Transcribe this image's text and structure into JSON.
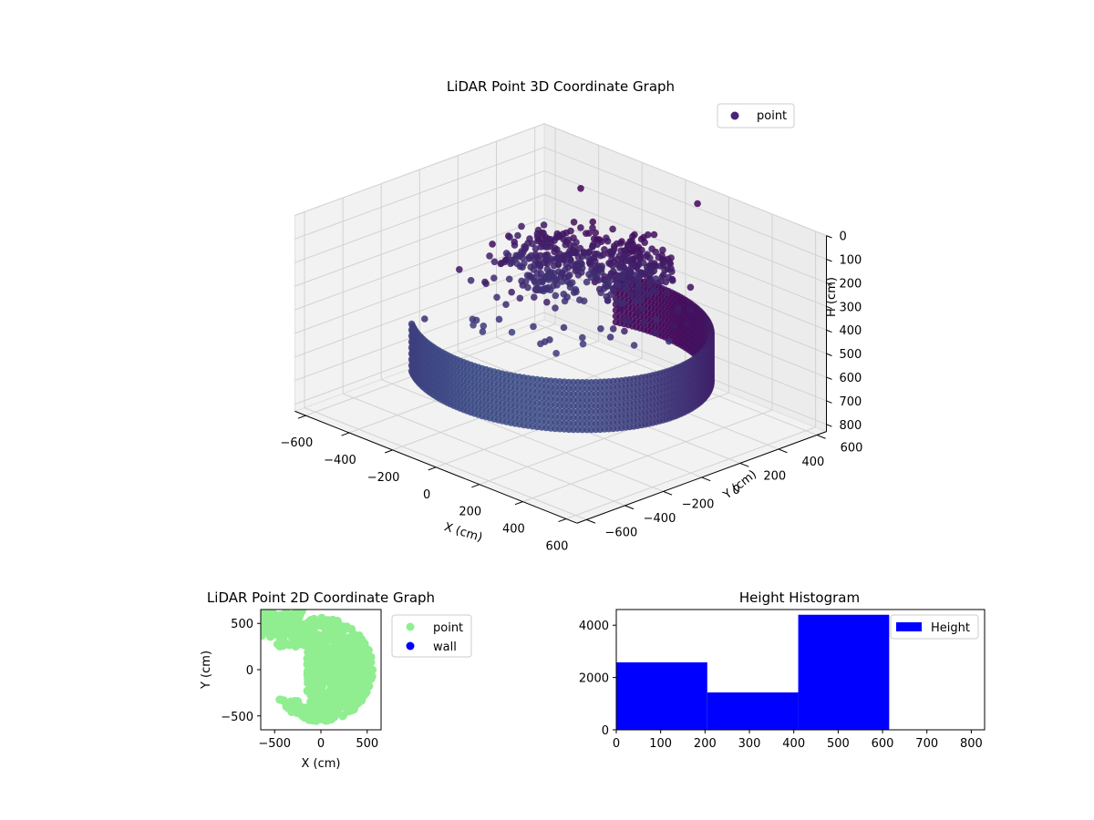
{
  "chart_data": [
    {
      "type": "scatter",
      "projection": "3d",
      "title": "LiDAR Point 3D Coordinate Graph",
      "xlabel": "X (cm)",
      "ylabel": "Y (cm)",
      "zlabel": "H (cm)",
      "xlim": [
        -650,
        650
      ],
      "ylim": [
        -650,
        650
      ],
      "zlim": [
        0,
        830
      ],
      "z_inverted": true,
      "xticks": [
        -600,
        -400,
        -200,
        0,
        200,
        400,
        600
      ],
      "yticks": [
        -600,
        -400,
        -200,
        0,
        200,
        400,
        600
      ],
      "zticks": [
        0,
        100,
        200,
        300,
        400,
        500,
        600,
        700,
        800
      ],
      "grid": true,
      "legend": {
        "position": "top-right",
        "entries": [
          "point"
        ]
      },
      "colormap": [
        "#440154",
        "#3b528b"
      ],
      "series": [
        {
          "name": "point",
          "color": "#482677",
          "description_groups": {
            "ring_wall": {
              "radius_cm": 520,
              "angle_deg": [
                -130,
                110
              ],
              "h_range": [
                420,
                620
              ]
            },
            "upper_cluster": {
              "radius_cm": 300,
              "h_range": [
                150,
                260
              ]
            },
            "scattered": [
              [
                -600,
                150,
                450
              ],
              [
                -580,
                300,
                380
              ],
              [
                -550,
                350,
                350
              ],
              [
                -350,
                500,
                120
              ],
              [
                -250,
                450,
                210
              ],
              [
                100,
                600,
                50
              ],
              [
                -450,
                -200,
                500
              ]
            ]
          }
        }
      ]
    },
    {
      "type": "scatter",
      "title": "LiDAR Point 2D Coordinate Graph",
      "xlabel": "X (cm)",
      "ylabel": "Y (cm)",
      "xlim": [
        -650,
        650
      ],
      "ylim": [
        -650,
        650
      ],
      "xticks": [
        -500,
        0,
        500
      ],
      "yticks": [
        -500,
        0,
        500
      ],
      "legend": {
        "position": "outside-right",
        "entries": [
          "point",
          "wall"
        ]
      },
      "series": [
        {
          "name": "point",
          "color": "#90ee90"
        },
        {
          "name": "wall",
          "color": "#0000ff"
        }
      ]
    },
    {
      "type": "bar",
      "title": "Height Histogram",
      "xlim": [
        0,
        830
      ],
      "ylim": [
        0,
        4600
      ],
      "xticks": [
        0,
        100,
        200,
        300,
        400,
        500,
        600,
        700,
        800
      ],
      "yticks": [
        0,
        2000,
        4000
      ],
      "legend": {
        "position": "top-right",
        "entries": [
          "Height"
        ]
      },
      "bins": [
        {
          "start": 0,
          "end": 205,
          "count": 2580
        },
        {
          "start": 205,
          "end": 410,
          "count": 1430
        },
        {
          "start": 410,
          "end": 615,
          "count": 4400
        },
        {
          "start": 615,
          "end": 820,
          "count": 0
        }
      ],
      "series": [
        {
          "name": "Height",
          "color": "#0000ff"
        }
      ]
    }
  ]
}
